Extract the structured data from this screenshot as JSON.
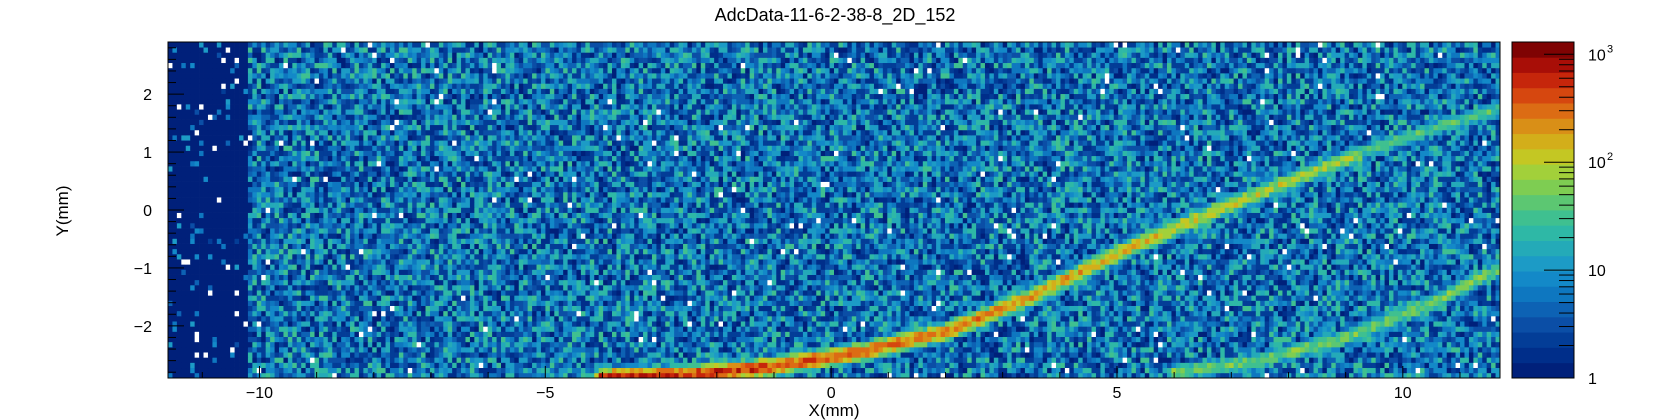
{
  "chart_data": {
    "type": "heatmap",
    "title": "AdcData-11-6-2-38-8_2D_152",
    "xlabel": "X(mm)",
    "ylabel": "Y(mm)",
    "xlim": [
      -11.6,
      11.7
    ],
    "ylim": [
      -2.9,
      2.9
    ],
    "x_ticks": [
      {
        "value": -10,
        "label": "−10"
      },
      {
        "value": -5,
        "label": "−5"
      },
      {
        "value": 0,
        "label": "0"
      },
      {
        "value": 5,
        "label": "5"
      },
      {
        "value": 10,
        "label": "10"
      }
    ],
    "y_ticks": [
      {
        "value": -2,
        "label": "−2"
      },
      {
        "value": -1,
        "label": "−1"
      },
      {
        "value": 0,
        "label": "0"
      },
      {
        "value": 1,
        "label": "1"
      },
      {
        "value": 2,
        "label": "2"
      }
    ],
    "z_scale": "log",
    "zlim": [
      1,
      1300
    ],
    "z_ticks": [
      {
        "value": 1,
        "base": "1",
        "exp": ""
      },
      {
        "value": 10,
        "base": "10",
        "exp": ""
      },
      {
        "value": 100,
        "base": "10",
        "exp": "2"
      },
      {
        "value": 1000,
        "base": "10",
        "exp": "3"
      }
    ],
    "palette": [
      "#00207a",
      "#002e8a",
      "#033d97",
      "#0b4ea6",
      "#0d62b4",
      "#0e77c0",
      "#1389c8",
      "#1c9bc6",
      "#24aab8",
      "#2eb8a6",
      "#3fc090",
      "#5cc772",
      "#7ecd52",
      "#a2d03a",
      "#c4c723",
      "#d3ae1a",
      "#d98f17",
      "#dc6c14",
      "#d6470f",
      "#c6260b",
      "#a80e07",
      "#7f0303"
    ],
    "empty_color": "#ffffff",
    "bins": {
      "nx": 300,
      "ny": 65
    },
    "regions": [
      {
        "name": "low-count band",
        "x": [
          -11.6,
          -10.2
        ],
        "level": 1
      },
      {
        "name": "noise background",
        "x": [
          -10.2,
          11.7
        ],
        "level": 10
      }
    ],
    "tracks": [
      {
        "name": "main track",
        "points": [
          [
            -4.0,
            -2.9
          ],
          [
            -2.5,
            -2.85
          ],
          [
            -1.0,
            -2.7
          ],
          [
            0.5,
            -2.45
          ],
          [
            2.0,
            -2.1
          ],
          [
            3.5,
            -1.5
          ],
          [
            5.0,
            -0.75
          ],
          [
            6.5,
            -0.1
          ],
          [
            8.0,
            0.5
          ],
          [
            9.2,
            0.95
          ]
        ],
        "peak": 900,
        "tail": 80
      },
      {
        "name": "lower track",
        "points": [
          [
            6.0,
            -2.8
          ],
          [
            7.5,
            -2.6
          ],
          [
            9.0,
            -2.2
          ],
          [
            10.5,
            -1.6
          ],
          [
            11.7,
            -1.0
          ]
        ],
        "peak": 60,
        "tail": 60
      },
      {
        "name": "upper track",
        "points": [
          [
            9.0,
            0.9
          ],
          [
            10.5,
            1.4
          ],
          [
            11.7,
            1.75
          ]
        ],
        "peak": 40,
        "tail": 40
      }
    ]
  }
}
